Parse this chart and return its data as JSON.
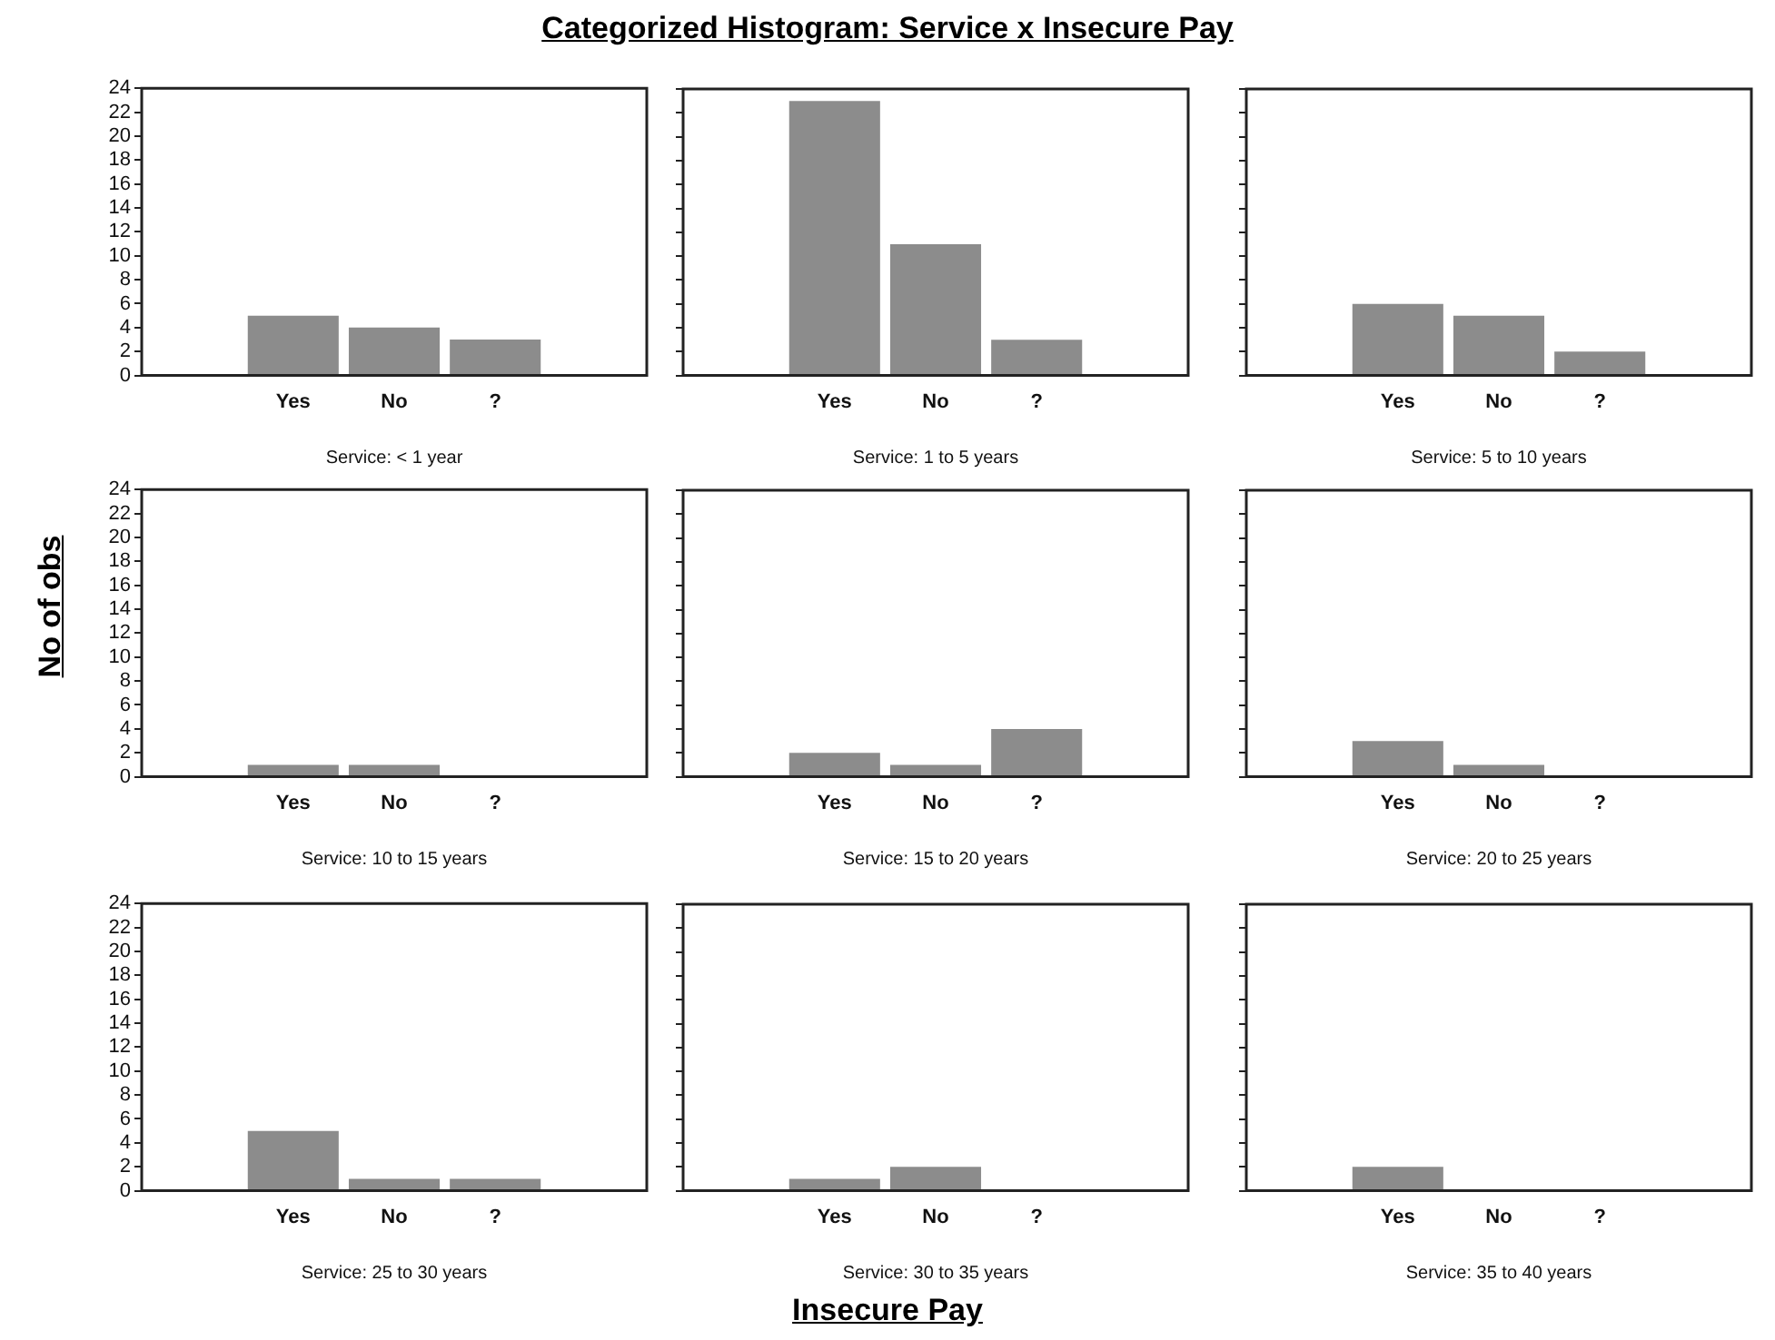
{
  "chart_data": [
    {
      "type": "bar",
      "title": "Categorized Histogram: Service x Insecure Pay",
      "xlabel": "Service: < 1 year",
      "categories": [
        null,
        "Yes",
        "No",
        "?",
        null
      ],
      "values": [
        null,
        5,
        4,
        3,
        null
      ],
      "color": "#8c8c8c",
      "ylim": [
        0,
        24
      ],
      "yticks": [
        0,
        2,
        4,
        6,
        8,
        10,
        12,
        14,
        16,
        18,
        20,
        22,
        24
      ],
      "grid": false,
      "legend": false
    },
    {
      "type": "bar",
      "xlabel": "Service: 1 to 5 years",
      "categories": [
        null,
        "Yes",
        "No",
        "?",
        null
      ],
      "values": [
        null,
        23,
        11,
        3,
        null
      ],
      "color": "#8c8c8c",
      "ylim": [
        0,
        24
      ],
      "yticks": [
        0,
        2,
        4,
        6,
        8,
        10,
        12,
        14,
        16,
        18,
        20,
        22,
        24
      ],
      "tick_labels": "x",
      "grid": false,
      "legend": false
    },
    {
      "type": "bar",
      "xlabel": "Service: 5 to 10 years",
      "categories": [
        null,
        "Yes",
        "No",
        "?",
        null
      ],
      "values": [
        null,
        6,
        5,
        2,
        null
      ],
      "color": "#8c8c8c",
      "ylim": [
        0,
        24
      ],
      "yticks": [
        0,
        2,
        4,
        6,
        8,
        10,
        12,
        14,
        16,
        18,
        20,
        22,
        24
      ],
      "tick_labels": "x",
      "grid": false,
      "legend": false
    },
    {
      "type": "bar",
      "ylabel": "No of obs",
      "xlabel": "Service: 10 to 15 years",
      "categories": [
        null,
        "Yes",
        "No",
        "?",
        null
      ],
      "values": [
        null,
        1,
        1,
        0,
        null
      ],
      "color": "#8c8c8c",
      "ylim": [
        0,
        24
      ],
      "yticks": [
        0,
        2,
        4,
        6,
        8,
        10,
        12,
        14,
        16,
        18,
        20,
        22,
        24
      ],
      "grid": false,
      "legend": false
    },
    {
      "type": "bar",
      "xlabel": "Service: 15 to 20 years",
      "categories": [
        null,
        "Yes",
        "No",
        "?",
        null
      ],
      "values": [
        null,
        2,
        1,
        4,
        null
      ],
      "color": "#8c8c8c",
      "ylim": [
        0,
        24
      ],
      "yticks": [
        0,
        2,
        4,
        6,
        8,
        10,
        12,
        14,
        16,
        18,
        20,
        22,
        24
      ],
      "tick_labels": "x",
      "grid": false,
      "legend": false
    },
    {
      "type": "bar",
      "xlabel": "Service: 20 to 25 years",
      "categories": [
        null,
        "Yes",
        "No",
        "?",
        null
      ],
      "values": [
        null,
        3,
        1,
        0,
        null
      ],
      "color": "#8c8c8c",
      "ylim": [
        0,
        24
      ],
      "yticks": [
        0,
        2,
        4,
        6,
        8,
        10,
        12,
        14,
        16,
        18,
        20,
        22,
        24
      ],
      "tick_labels": "x",
      "grid": false,
      "legend": false
    },
    {
      "type": "bar",
      "xlabel": "Service: 25 to 30 years",
      "categories": [
        null,
        "Yes",
        "No",
        "?",
        null
      ],
      "values": [
        null,
        5,
        1,
        1,
        null
      ],
      "color": "#8c8c8c",
      "ylim": [
        0,
        24
      ],
      "yticks": [
        0,
        2,
        4,
        6,
        8,
        10,
        12,
        14,
        16,
        18,
        20,
        22,
        24
      ],
      "grid": false,
      "legend": false
    },
    {
      "type": "bar",
      "xlabel": "Service: 30 to 35 years",
      "annotations": [
        "Insecure Pay"
      ],
      "categories": [
        null,
        "Yes",
        "No",
        "?",
        null
      ],
      "values": [
        null,
        1,
        2,
        0,
        null
      ],
      "color": "#8c8c8c",
      "ylim": [
        0,
        24
      ],
      "yticks": [
        0,
        2,
        4,
        6,
        8,
        10,
        12,
        14,
        16,
        18,
        20,
        22,
        24
      ],
      "tick_labels": "x",
      "grid": false,
      "legend": false
    },
    {
      "type": "bar",
      "xlabel": "Service: 35 to 40 years",
      "categories": [
        null,
        "Yes",
        "No",
        "?",
        null
      ],
      "values": [
        null,
        2,
        0,
        0,
        null
      ],
      "color": "#8c8c8c",
      "ylim": [
        0,
        24
      ],
      "yticks": [
        0,
        2,
        4,
        6,
        8,
        10,
        12,
        14,
        16,
        18,
        20,
        22,
        24
      ],
      "tick_labels": "x",
      "grid": false,
      "legend": false
    }
  ]
}
